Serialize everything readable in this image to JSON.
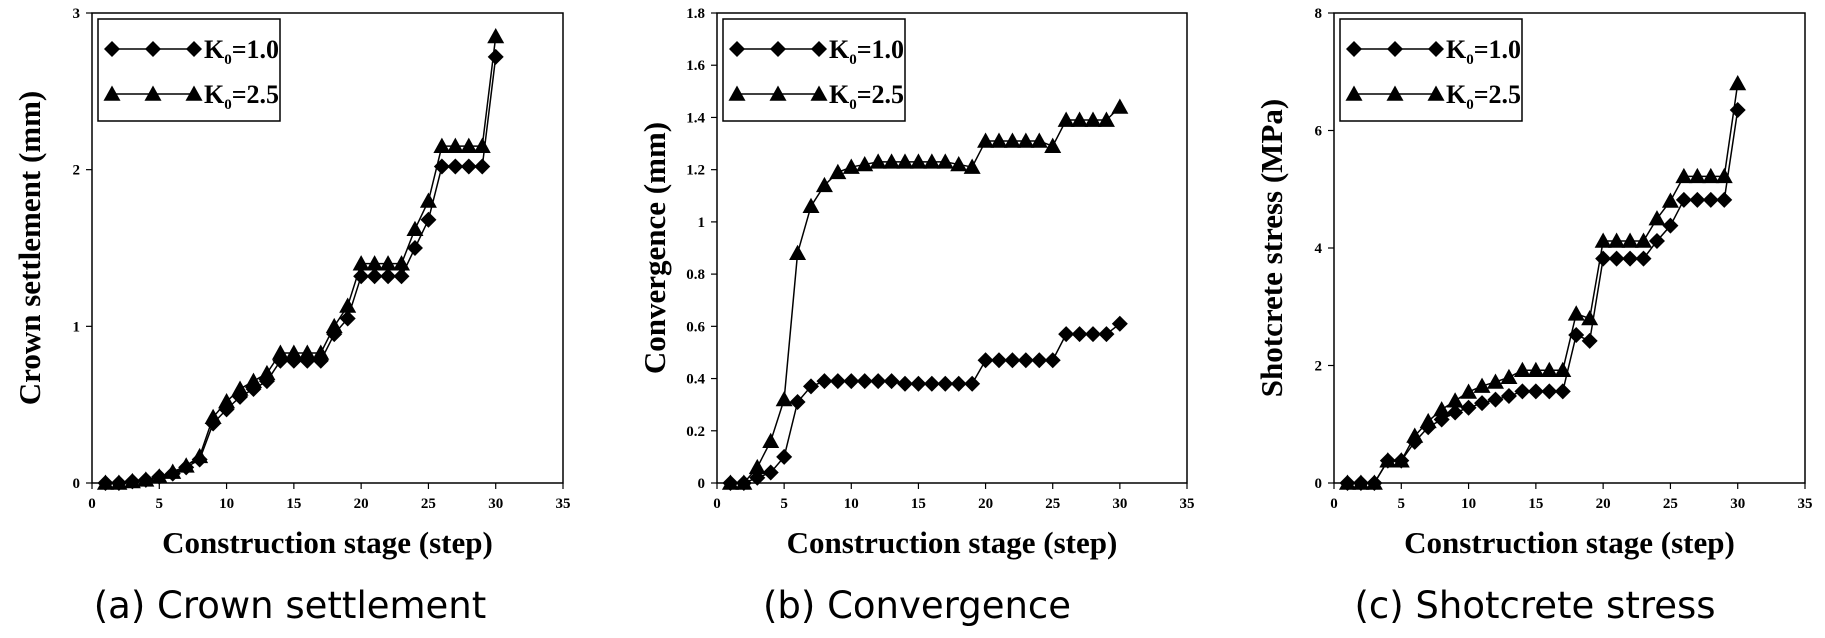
{
  "chart_data": [
    {
      "type": "line",
      "caption": "(a) Crown settlement",
      "xlabel": "Construction stage (step)",
      "ylabel": "Crown settlement (mm)",
      "xlim": [
        0,
        35
      ],
      "ylim": [
        0,
        3
      ],
      "xticks": [
        0,
        5,
        10,
        15,
        20,
        25,
        30,
        35
      ],
      "yticks": [
        0,
        1,
        2,
        3
      ],
      "legend_position": "top-left",
      "series": [
        {
          "name": "K0=1.0",
          "legend_main": "K",
          "legend_sub": "0",
          "legend_value": "=1.0",
          "marker": "diamond",
          "x": [
            1,
            2,
            3,
            4,
            5,
            6,
            7,
            8,
            9,
            10,
            11,
            12,
            13,
            14,
            15,
            16,
            17,
            18,
            19,
            20,
            21,
            22,
            23,
            24,
            25,
            26,
            27,
            28,
            29,
            30
          ],
          "y": [
            0,
            0,
            0.01,
            0.02,
            0.04,
            0.06,
            0.1,
            0.15,
            0.38,
            0.47,
            0.55,
            0.6,
            0.65,
            0.78,
            0.78,
            0.78,
            0.78,
            0.95,
            1.05,
            1.32,
            1.32,
            1.32,
            1.32,
            1.5,
            1.68,
            2.02,
            2.02,
            2.02,
            2.02,
            2.72
          ]
        },
        {
          "name": "K0=2.5",
          "legend_main": "K",
          "legend_sub": "0",
          "legend_value": "=2.5",
          "marker": "triangle",
          "x": [
            1,
            2,
            3,
            4,
            5,
            6,
            7,
            8,
            9,
            10,
            11,
            12,
            13,
            14,
            15,
            16,
            17,
            18,
            19,
            20,
            21,
            22,
            23,
            24,
            25,
            26,
            27,
            28,
            29,
            30
          ],
          "y": [
            0,
            0,
            0.01,
            0.02,
            0.04,
            0.07,
            0.11,
            0.17,
            0.42,
            0.52,
            0.6,
            0.65,
            0.7,
            0.83,
            0.83,
            0.83,
            0.83,
            1.0,
            1.13,
            1.4,
            1.4,
            1.4,
            1.4,
            1.62,
            1.8,
            2.15,
            2.15,
            2.15,
            2.15,
            2.85
          ]
        }
      ]
    },
    {
      "type": "line",
      "caption": "(b) Convergence",
      "xlabel": "Construction stage (step)",
      "ylabel": "Convergence (mm)",
      "xlim": [
        0,
        35
      ],
      "ylim": [
        0,
        1.8
      ],
      "xticks": [
        0,
        5,
        10,
        15,
        20,
        25,
        30,
        35
      ],
      "yticks": [
        0,
        0.2,
        0.4,
        0.6,
        0.8,
        1,
        1.2,
        1.4,
        1.6,
        1.8
      ],
      "legend_position": "top-left",
      "series": [
        {
          "name": "K0=1.0",
          "legend_main": "K",
          "legend_sub": "0",
          "legend_value": "=1.0",
          "marker": "diamond",
          "x": [
            1,
            2,
            3,
            4,
            5,
            6,
            7,
            8,
            9,
            10,
            11,
            12,
            13,
            14,
            15,
            16,
            17,
            18,
            19,
            20,
            21,
            22,
            23,
            24,
            25,
            26,
            27,
            28,
            29,
            30
          ],
          "y": [
            0,
            0,
            0.02,
            0.04,
            0.1,
            0.31,
            0.37,
            0.39,
            0.39,
            0.39,
            0.39,
            0.39,
            0.39,
            0.38,
            0.38,
            0.38,
            0.38,
            0.38,
            0.38,
            0.47,
            0.47,
            0.47,
            0.47,
            0.47,
            0.47,
            0.57,
            0.57,
            0.57,
            0.57,
            0.61
          ]
        },
        {
          "name": "K0=2.5",
          "legend_main": "K",
          "legend_sub": "0",
          "legend_value": "=2.5",
          "marker": "triangle",
          "x": [
            1,
            2,
            3,
            4,
            5,
            6,
            7,
            8,
            9,
            10,
            11,
            12,
            13,
            14,
            15,
            16,
            17,
            18,
            19,
            20,
            21,
            22,
            23,
            24,
            25,
            26,
            27,
            28,
            29,
            30
          ],
          "y": [
            0,
            0,
            0.06,
            0.16,
            0.32,
            0.88,
            1.06,
            1.14,
            1.19,
            1.21,
            1.22,
            1.23,
            1.23,
            1.23,
            1.23,
            1.23,
            1.23,
            1.22,
            1.21,
            1.31,
            1.31,
            1.31,
            1.31,
            1.31,
            1.29,
            1.39,
            1.39,
            1.39,
            1.39,
            1.44
          ]
        }
      ]
    },
    {
      "type": "line",
      "caption": "(c) Shotcrete stress",
      "xlabel": "Construction stage (step)",
      "ylabel": "Shotcrete stress (MPa)",
      "xlim": [
        0,
        35
      ],
      "ylim": [
        0,
        8
      ],
      "xticks": [
        0,
        5,
        10,
        15,
        20,
        25,
        30,
        35
      ],
      "yticks": [
        0,
        2,
        4,
        6,
        8
      ],
      "legend_position": "top-left",
      "series": [
        {
          "name": "K0=1.0",
          "legend_main": "K",
          "legend_sub": "0",
          "legend_value": "=1.0",
          "marker": "diamond",
          "x": [
            1,
            2,
            3,
            4,
            5,
            6,
            7,
            8,
            9,
            10,
            11,
            12,
            13,
            14,
            15,
            16,
            17,
            18,
            19,
            20,
            21,
            22,
            23,
            24,
            25,
            26,
            27,
            28,
            29,
            30
          ],
          "y": [
            0,
            0,
            0,
            0.38,
            0.38,
            0.7,
            0.95,
            1.08,
            1.2,
            1.28,
            1.36,
            1.42,
            1.48,
            1.56,
            1.56,
            1.56,
            1.56,
            2.52,
            2.42,
            3.82,
            3.82,
            3.82,
            3.82,
            4.12,
            4.38,
            4.82,
            4.82,
            4.82,
            4.82,
            6.35
          ]
        },
        {
          "name": "K0=2.5",
          "legend_main": "K",
          "legend_sub": "0",
          "legend_value": "=2.5",
          "marker": "triangle",
          "x": [
            1,
            2,
            3,
            4,
            5,
            6,
            7,
            8,
            9,
            10,
            11,
            12,
            13,
            14,
            15,
            16,
            17,
            18,
            19,
            20,
            21,
            22,
            23,
            24,
            25,
            26,
            27,
            28,
            29,
            30
          ],
          "y": [
            0,
            0,
            0,
            0.38,
            0.38,
            0.8,
            1.05,
            1.25,
            1.4,
            1.55,
            1.65,
            1.72,
            1.8,
            1.92,
            1.92,
            1.92,
            1.92,
            2.88,
            2.8,
            4.12,
            4.12,
            4.12,
            4.12,
            4.5,
            4.8,
            5.22,
            5.22,
            5.22,
            5.22,
            6.8
          ]
        }
      ]
    }
  ]
}
